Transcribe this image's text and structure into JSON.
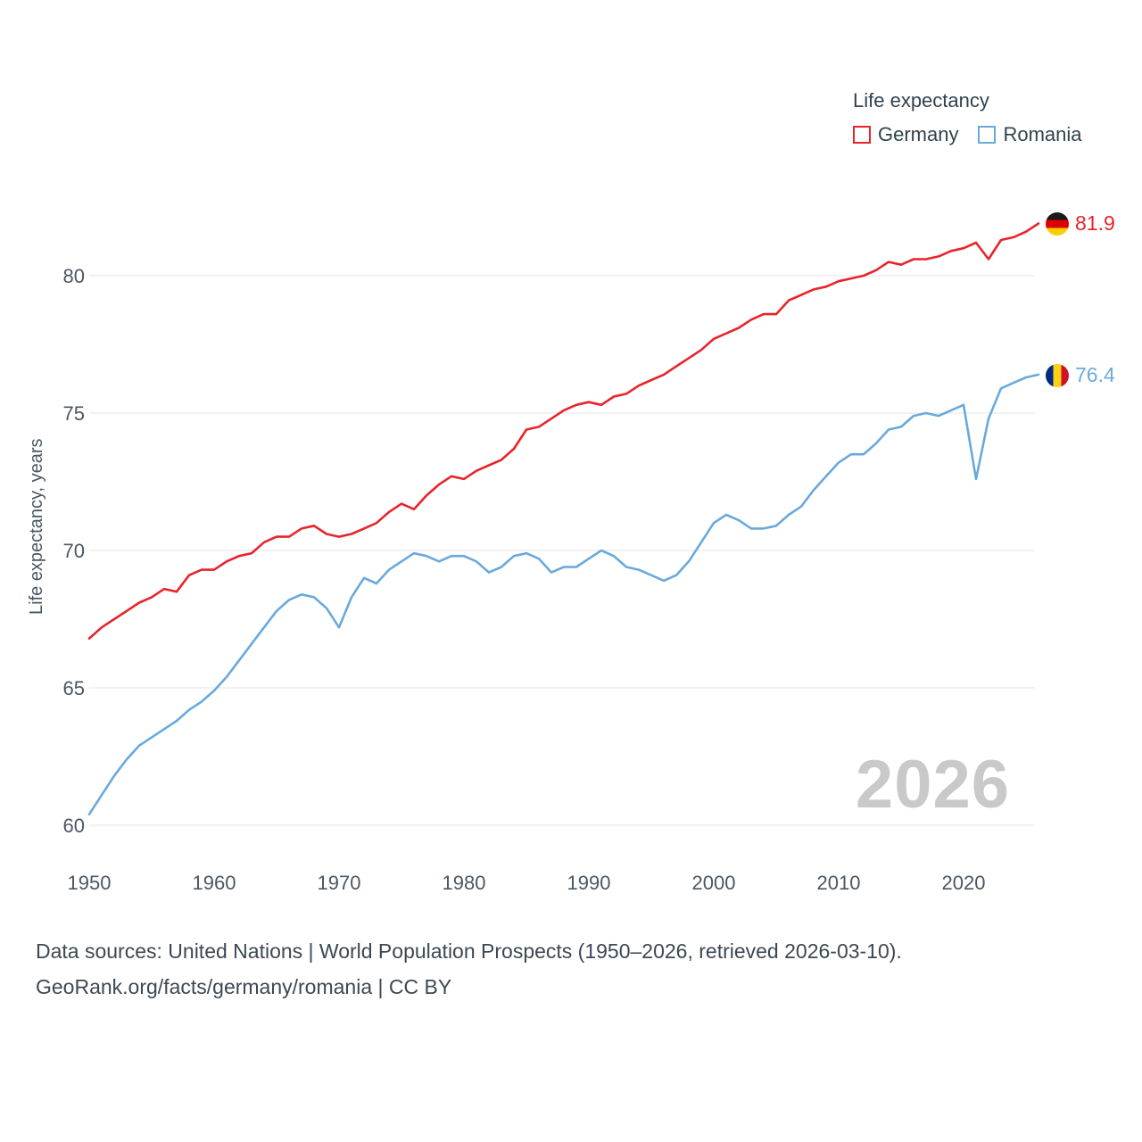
{
  "legend": {
    "title": "Life expectancy",
    "items": [
      {
        "label": "Germany"
      },
      {
        "label": "Romania"
      }
    ]
  },
  "y_axis_label": "Life expectancy, years",
  "end_labels": {
    "germany_value": "81.9",
    "romania_value": "76.4"
  },
  "watermark": "2026",
  "footer": {
    "line1": "Data sources: United Nations | World Population Prospects (1950–2026, retrieved 2026-03-10).",
    "line2": "GeoRank.org/facts/germany/romania | CC BY"
  },
  "colors": {
    "germany": "#e8242b",
    "romania": "#6aa9dc",
    "grid": "#e9e9e9",
    "tick_text": "#4a5763"
  },
  "chart_data": {
    "type": "line",
    "title": "Life expectancy",
    "xlabel": "",
    "ylabel": "Life expectancy, years",
    "x_ticks": [
      1950,
      1960,
      1970,
      1980,
      1990,
      2000,
      2010,
      2020
    ],
    "y_ticks": [
      60,
      65,
      70,
      75,
      80
    ],
    "ylim": [
      59.3,
      82.6
    ],
    "xlim": [
      1950,
      2026
    ],
    "grid": "horizontal",
    "legend_position": "top-right",
    "x": [
      1950,
      1951,
      1952,
      1953,
      1954,
      1955,
      1956,
      1957,
      1958,
      1959,
      1960,
      1961,
      1962,
      1963,
      1964,
      1965,
      1966,
      1967,
      1968,
      1969,
      1970,
      1971,
      1972,
      1973,
      1974,
      1975,
      1976,
      1977,
      1978,
      1979,
      1980,
      1981,
      1982,
      1983,
      1984,
      1985,
      1986,
      1987,
      1988,
      1989,
      1990,
      1991,
      1992,
      1993,
      1994,
      1995,
      1996,
      1997,
      1998,
      1999,
      2000,
      2001,
      2002,
      2003,
      2004,
      2005,
      2006,
      2007,
      2008,
      2009,
      2010,
      2011,
      2012,
      2013,
      2014,
      2015,
      2016,
      2017,
      2018,
      2019,
      2020,
      2021,
      2022,
      2023,
      2024,
      2025,
      2026
    ],
    "series": [
      {
        "name": "Germany",
        "color": "#e8242b",
        "end_value": 81.9,
        "values": [
          66.8,
          67.2,
          67.5,
          67.8,
          68.1,
          68.3,
          68.6,
          68.5,
          69.1,
          69.3,
          69.3,
          69.6,
          69.8,
          69.9,
          70.3,
          70.5,
          70.5,
          70.8,
          70.9,
          70.6,
          70.5,
          70.6,
          70.8,
          71.0,
          71.4,
          71.7,
          71.5,
          72.0,
          72.4,
          72.7,
          72.6,
          72.9,
          73.1,
          73.3,
          73.7,
          74.4,
          74.5,
          74.8,
          75.1,
          75.3,
          75.4,
          75.3,
          75.6,
          75.7,
          76.0,
          76.2,
          76.4,
          76.7,
          77.0,
          77.3,
          77.7,
          77.9,
          78.1,
          78.4,
          78.6,
          78.6,
          79.1,
          79.3,
          79.5,
          79.6,
          79.8,
          79.9,
          80.0,
          80.2,
          80.5,
          80.4,
          80.6,
          80.6,
          80.7,
          80.9,
          81.0,
          81.2,
          80.6,
          81.3,
          81.4,
          81.6,
          81.9
        ]
      },
      {
        "name": "Romania",
        "color": "#6aa9dc",
        "end_value": 76.4,
        "values": [
          60.4,
          61.1,
          61.8,
          62.4,
          62.9,
          63.2,
          63.5,
          63.8,
          64.2,
          64.5,
          64.9,
          65.4,
          66.0,
          66.6,
          67.2,
          67.8,
          68.2,
          68.4,
          68.3,
          67.9,
          67.2,
          68.3,
          69.0,
          68.8,
          69.3,
          69.6,
          69.9,
          69.8,
          69.6,
          69.8,
          69.8,
          69.6,
          69.2,
          69.4,
          69.8,
          69.9,
          69.7,
          69.2,
          69.4,
          69.4,
          69.7,
          70.0,
          69.8,
          69.4,
          69.3,
          69.1,
          68.9,
          69.1,
          69.6,
          70.3,
          71.0,
          71.3,
          71.1,
          70.8,
          70.8,
          70.9,
          71.3,
          71.6,
          72.2,
          72.7,
          73.2,
          73.5,
          73.5,
          73.9,
          74.4,
          74.5,
          74.9,
          75.0,
          74.9,
          75.1,
          75.3,
          72.6,
          74.8,
          75.9,
          76.1,
          76.3,
          76.4
        ]
      }
    ]
  }
}
